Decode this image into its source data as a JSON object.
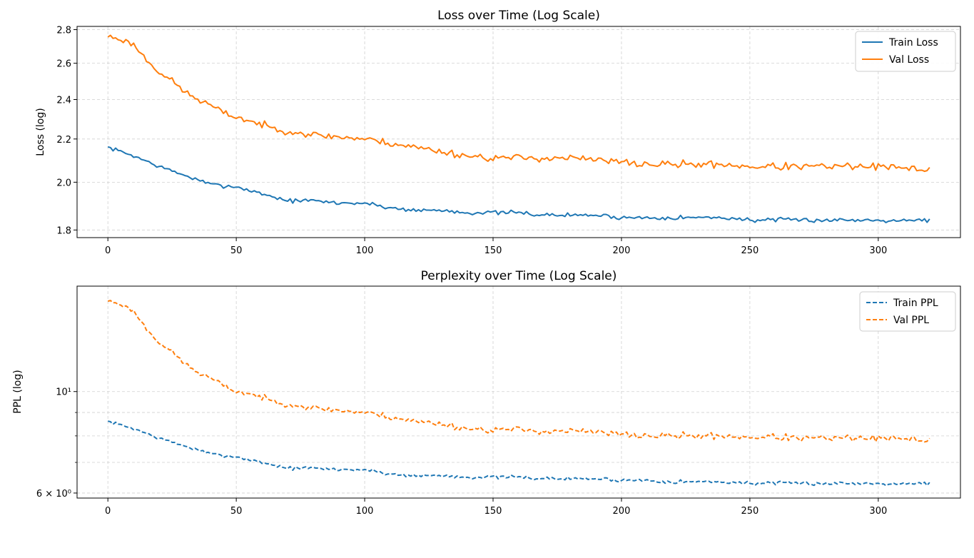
{
  "figure": {
    "charts": [
      {
        "type": "line",
        "title": "Loss over Time (Log Scale)",
        "xlabel": "",
        "ylabel": "Loss (log)",
        "yscale": "log",
        "xlim": [
          -12,
          332
        ],
        "ylim": [
          1.77,
          2.82
        ],
        "xticks": [
          0,
          50,
          100,
          150,
          200,
          250,
          300
        ],
        "xtick_labels": [
          "0",
          "50",
          "100",
          "150",
          "200",
          "250",
          "300"
        ],
        "yticks": [
          1.8,
          2.0,
          2.2,
          2.4,
          2.6,
          2.8
        ],
        "ytick_labels": [
          "1.8",
          "2.0",
          "2.2",
          "2.4",
          "2.6",
          "2.8"
        ],
        "grid": true,
        "legend_position": "top-right",
        "series": [
          {
            "name": "Train Loss",
            "color": "#1f77b4",
            "style": "solid",
            "x_start": 0,
            "x_end": 320,
            "anchors": [
              [
                0,
                2.16
              ],
              [
                10,
                2.12
              ],
              [
                20,
                2.07
              ],
              [
                30,
                2.03
              ],
              [
                40,
                1.99
              ],
              [
                50,
                1.98
              ],
              [
                60,
                1.95
              ],
              [
                70,
                1.92
              ],
              [
                80,
                1.92
              ],
              [
                90,
                1.91
              ],
              [
                100,
                1.91
              ],
              [
                110,
                1.89
              ],
              [
                120,
                1.88
              ],
              [
                130,
                1.88
              ],
              [
                140,
                1.87
              ],
              [
                150,
                1.87
              ],
              [
                160,
                1.87
              ],
              [
                170,
                1.86
              ],
              [
                180,
                1.86
              ],
              [
                190,
                1.86
              ],
              [
                200,
                1.85
              ],
              [
                210,
                1.85
              ],
              [
                220,
                1.85
              ],
              [
                230,
                1.85
              ],
              [
                240,
                1.85
              ],
              [
                250,
                1.84
              ],
              [
                260,
                1.84
              ],
              [
                270,
                1.84
              ],
              [
                280,
                1.84
              ],
              [
                290,
                1.84
              ],
              [
                300,
                1.84
              ],
              [
                310,
                1.84
              ],
              [
                320,
                1.84
              ]
            ],
            "noise": 0.013,
            "seed": 7
          },
          {
            "name": "Val Loss",
            "color": "#ff7f0e",
            "style": "solid",
            "x_start": 0,
            "x_end": 320,
            "anchors": [
              [
                0,
                2.76
              ],
              [
                5,
                2.74
              ],
              [
                10,
                2.71
              ],
              [
                15,
                2.62
              ],
              [
                20,
                2.55
              ],
              [
                25,
                2.5
              ],
              [
                30,
                2.44
              ],
              [
                35,
                2.4
              ],
              [
                40,
                2.37
              ],
              [
                45,
                2.33
              ],
              [
                50,
                2.31
              ],
              [
                55,
                2.29
              ],
              [
                60,
                2.27
              ],
              [
                65,
                2.25
              ],
              [
                70,
                2.24
              ],
              [
                75,
                2.23
              ],
              [
                80,
                2.22
              ],
              [
                90,
                2.21
              ],
              [
                100,
                2.2
              ],
              [
                110,
                2.18
              ],
              [
                120,
                2.16
              ],
              [
                130,
                2.14
              ],
              [
                140,
                2.12
              ],
              [
                150,
                2.11
              ],
              [
                160,
                2.11
              ],
              [
                170,
                2.11
              ],
              [
                180,
                2.11
              ],
              [
                190,
                2.1
              ],
              [
                200,
                2.09
              ],
              [
                210,
                2.08
              ],
              [
                220,
                2.08
              ],
              [
                230,
                2.08
              ],
              [
                240,
                2.08
              ],
              [
                250,
                2.07
              ],
              [
                260,
                2.07
              ],
              [
                270,
                2.07
              ],
              [
                280,
                2.07
              ],
              [
                290,
                2.07
              ],
              [
                300,
                2.07
              ],
              [
                310,
                2.06
              ],
              [
                320,
                2.06
              ]
            ],
            "noise": 0.025,
            "seed": 23
          }
        ]
      },
      {
        "type": "line",
        "title": "Perplexity over Time (Log Scale)",
        "xlabel": "",
        "ylabel": "PPL (log)",
        "yscale": "log",
        "xlim": [
          -12,
          332
        ],
        "ylim": [
          5.85,
          17.0
        ],
        "xticks": [
          0,
          50,
          100,
          150,
          200,
          250,
          300
        ],
        "xtick_labels": [
          "0",
          "50",
          "100",
          "150",
          "200",
          "250",
          "300"
        ],
        "yticks": [
          6,
          10
        ],
        "ytick_labels": [
          "6 × 10⁰",
          "10¹"
        ],
        "minor_yticks": [
          7,
          8,
          9
        ],
        "grid": true,
        "legend_position": "top-right",
        "series": [
          {
            "name": "Train PPL",
            "color": "#1f77b4",
            "style": "dashed",
            "x_start": 0,
            "x_end": 320,
            "anchors": [
              [
                0,
                8.6
              ],
              [
                10,
                8.3
              ],
              [
                20,
                7.9
              ],
              [
                30,
                7.6
              ],
              [
                40,
                7.3
              ],
              [
                50,
                7.2
              ],
              [
                60,
                7.0
              ],
              [
                70,
                6.8
              ],
              [
                80,
                6.8
              ],
              [
                90,
                6.75
              ],
              [
                100,
                6.75
              ],
              [
                110,
                6.6
              ],
              [
                120,
                6.55
              ],
              [
                130,
                6.55
              ],
              [
                140,
                6.5
              ],
              [
                150,
                6.5
              ],
              [
                160,
                6.5
              ],
              [
                170,
                6.45
              ],
              [
                180,
                6.45
              ],
              [
                190,
                6.45
              ],
              [
                200,
                6.4
              ],
              [
                210,
                6.4
              ],
              [
                220,
                6.35
              ],
              [
                230,
                6.35
              ],
              [
                240,
                6.35
              ],
              [
                250,
                6.3
              ],
              [
                260,
                6.3
              ],
              [
                270,
                6.3
              ],
              [
                280,
                6.3
              ],
              [
                290,
                6.3
              ],
              [
                300,
                6.3
              ],
              [
                310,
                6.3
              ],
              [
                320,
                6.3
              ]
            ],
            "noise": 0.09,
            "seed": 7
          },
          {
            "name": "Val PPL",
            "color": "#ff7f0e",
            "style": "dashed",
            "x_start": 0,
            "x_end": 320,
            "anchors": [
              [
                0,
                15.8
              ],
              [
                5,
                15.5
              ],
              [
                10,
                15.0
              ],
              [
                15,
                13.7
              ],
              [
                20,
                12.8
              ],
              [
                25,
                12.2
              ],
              [
                30,
                11.5
              ],
              [
                35,
                11.0
              ],
              [
                40,
                10.7
              ],
              [
                45,
                10.3
              ],
              [
                50,
                10.0
              ],
              [
                55,
                9.9
              ],
              [
                60,
                9.7
              ],
              [
                65,
                9.5
              ],
              [
                70,
                9.4
              ],
              [
                75,
                9.3
              ],
              [
                80,
                9.2
              ],
              [
                90,
                9.1
              ],
              [
                100,
                9.0
              ],
              [
                110,
                8.8
              ],
              [
                120,
                8.6
              ],
              [
                130,
                8.5
              ],
              [
                140,
                8.3
              ],
              [
                150,
                8.25
              ],
              [
                160,
                8.25
              ],
              [
                170,
                8.2
              ],
              [
                180,
                8.2
              ],
              [
                190,
                8.15
              ],
              [
                200,
                8.05
              ],
              [
                210,
                8.0
              ],
              [
                220,
                8.0
              ],
              [
                230,
                8.0
              ],
              [
                240,
                8.0
              ],
              [
                250,
                7.95
              ],
              [
                260,
                7.95
              ],
              [
                270,
                7.9
              ],
              [
                280,
                7.9
              ],
              [
                290,
                7.9
              ],
              [
                300,
                7.9
              ],
              [
                310,
                7.85
              ],
              [
                320,
                7.85
              ]
            ],
            "noise": 0.2,
            "seed": 23
          }
        ]
      }
    ]
  }
}
